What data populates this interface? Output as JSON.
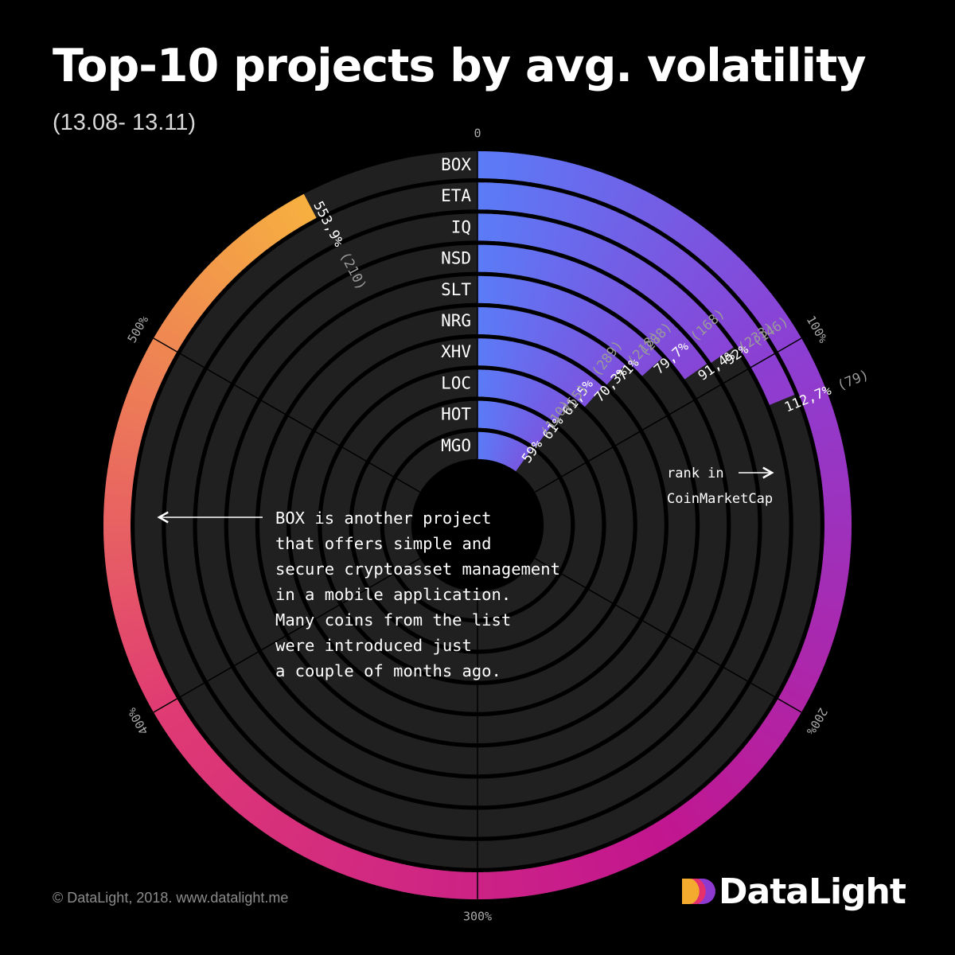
{
  "title": "Top-10 projects by avg. volatility",
  "subtitle": "(13.08- 13.11)",
  "chart_data": {
    "type": "radial-bar",
    "title": "Top-10 projects by avg. volatility",
    "subtitle": "(13.08- 13.11)",
    "angular_axis": {
      "min": 0,
      "max": 600,
      "ticks": [
        "0",
        "100%",
        "200%",
        "300%",
        "400%",
        "500%"
      ]
    },
    "projects": [
      {
        "name": "BOX",
        "value": 553.9,
        "label": "553,9%",
        "rank": "(210)"
      },
      {
        "name": "ETA",
        "value": 112.7,
        "label": "112,7%",
        "rank": "(79)"
      },
      {
        "name": "IQ",
        "value": 92,
        "label": "92%",
        "rank": "(146)"
      },
      {
        "name": "NSD",
        "value": 91.4,
        "label": "91,4%",
        "rank": "(233)"
      },
      {
        "name": "SLT",
        "value": 79.7,
        "label": "79,7%",
        "rank": "(168)"
      },
      {
        "name": "NRG",
        "value": 71,
        "label": "71%",
        "rank": "(288)"
      },
      {
        "name": "XHV",
        "value": 70.3,
        "label": "70,3%",
        "rank": "(218)"
      },
      {
        "name": "LOC",
        "value": 61.5,
        "label": "61,5%",
        "rank": "(289)"
      },
      {
        "name": "HOT",
        "value": 61,
        "label": "61%",
        "rank": "(55)"
      },
      {
        "name": "MGO",
        "value": 59,
        "label": "59%",
        "rank": "(110)"
      }
    ],
    "annotation_rank": "rank in\nCoinMarketCap",
    "annotation_box": "BOX is another project\nthat offers simple and\nsecure cryptoasset management\nin a mobile application.\nMany coins from the list\nwere introduced just\na couple of months ago.",
    "colors": {
      "gradient_start": "#5b7cf7",
      "gradient_mid": "#8c3fd3",
      "gradient_magenta": "#c2168f",
      "gradient_pink": "#e03b73",
      "gradient_end": "#f7b040",
      "track": "#202020",
      "background": "#000000"
    }
  },
  "footer": {
    "copyright": "© DataLight, 2018. www.datalight.me",
    "brand": "DataLight"
  }
}
